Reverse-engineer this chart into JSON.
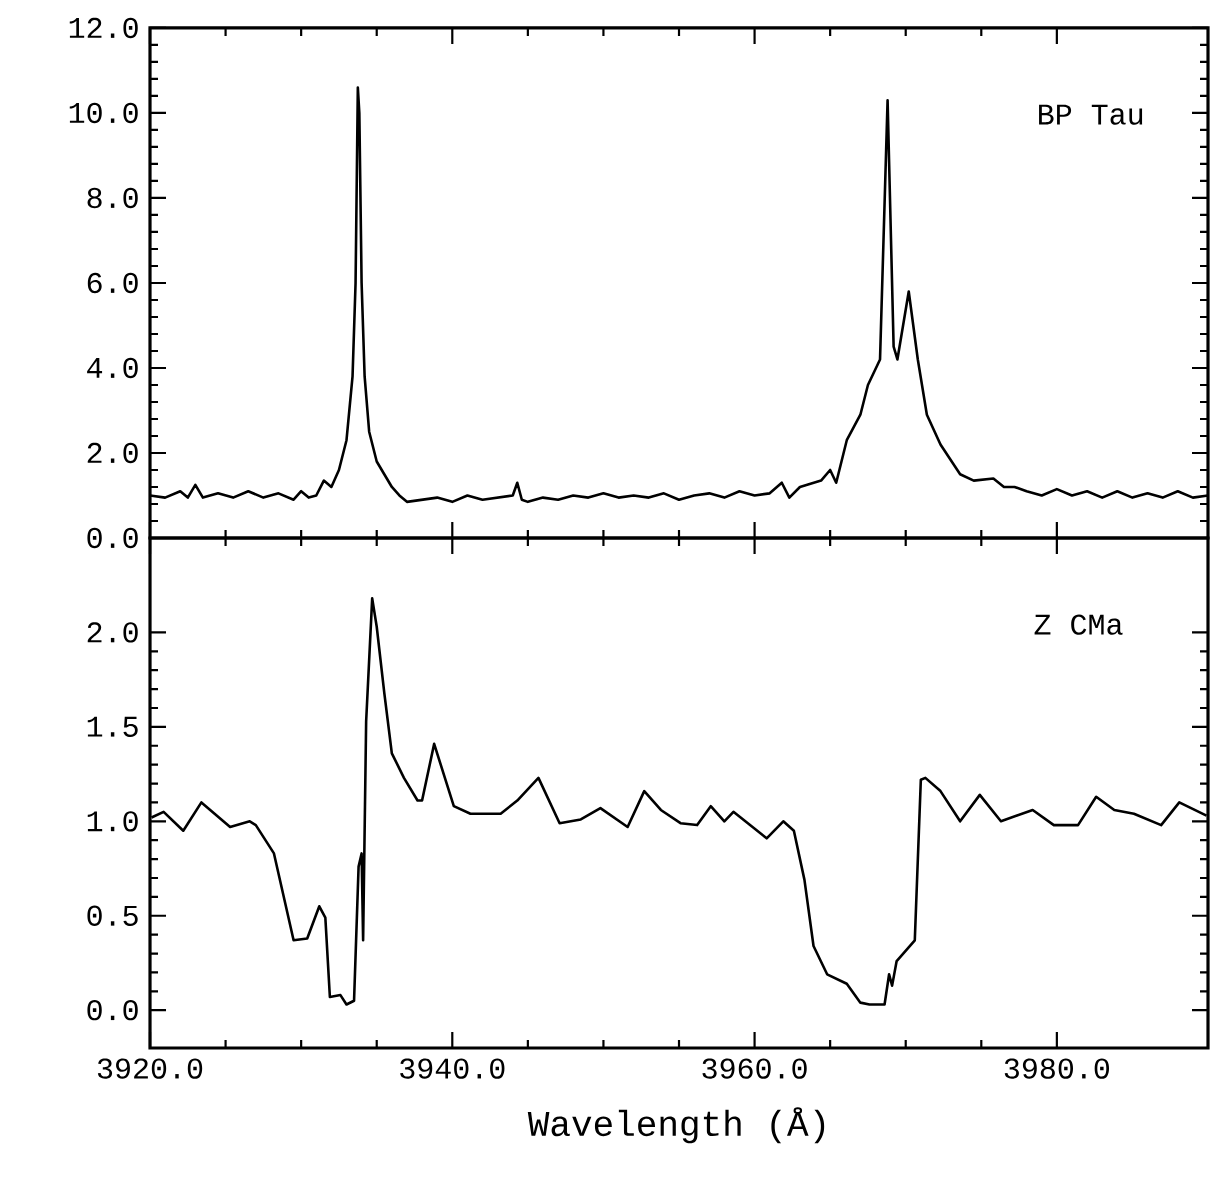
{
  "chart_data": [
    {
      "type": "line",
      "xlim": [
        3920,
        3990
      ],
      "xticks": [
        {
          "value": 3920,
          "label": null
        },
        {
          "value": 3940,
          "label": null
        },
        {
          "value": 3960,
          "label": null
        },
        {
          "value": 3980,
          "label": null
        }
      ],
      "ylim": [
        0,
        12
      ],
      "yticks": [
        {
          "value": 0,
          "label": "0.0"
        },
        {
          "value": 2,
          "label": "2.0"
        },
        {
          "value": 4,
          "label": "4.0"
        },
        {
          "value": 6,
          "label": "6.0"
        },
        {
          "value": 8,
          "label": "8.0"
        },
        {
          "value": 10,
          "label": "10.0"
        },
        {
          "value": 12,
          "label": "12.0"
        }
      ],
      "tick_labels": "y",
      "series": [
        {
          "name": "BP Tau",
          "color": "#000000",
          "x": [
            3920,
            3921,
            3922,
            3922.5,
            3923,
            3923.5,
            3924.5,
            3925.5,
            3926.5,
            3927.5,
            3928.5,
            3929.5,
            3930,
            3930.5,
            3931,
            3931.5,
            3932,
            3932.5,
            3933,
            3933.4,
            3933.6,
            3933.75,
            3933.85,
            3934.0,
            3934.2,
            3934.5,
            3935,
            3935.5,
            3936,
            3936.5,
            3937,
            3938,
            3939,
            3940,
            3941,
            3942,
            3943,
            3944,
            3944.3,
            3944.6,
            3945,
            3946,
            3947,
            3948,
            3949,
            3950,
            3951,
            3952,
            3953,
            3954,
            3955,
            3956,
            3957,
            3958,
            3959,
            3960,
            3961,
            3961.8,
            3962.3,
            3963,
            3964.4,
            3965.0,
            3965.4,
            3966.1,
            3967.0,
            3967.5,
            3968.3,
            3968.8,
            3969.2,
            3969.45,
            3970.2,
            3970.8,
            3971.4,
            3972.3,
            3973.6,
            3974.5,
            3975.8,
            3976.5,
            3977.2,
            3978,
            3979,
            3980,
            3981,
            3982,
            3983,
            3984,
            3985,
            3986,
            3987,
            3988,
            3989,
            3990
          ],
          "values": [
            1.0,
            0.95,
            1.1,
            0.95,
            1.25,
            0.95,
            1.05,
            0.95,
            1.1,
            0.95,
            1.05,
            0.9,
            1.1,
            0.95,
            1.0,
            1.35,
            1.2,
            1.6,
            2.3,
            3.8,
            6.0,
            10.6,
            10.0,
            6.0,
            3.8,
            2.5,
            1.8,
            1.5,
            1.2,
            1.0,
            0.85,
            0.9,
            0.95,
            0.85,
            1.0,
            0.9,
            0.95,
            1.0,
            1.3,
            0.9,
            0.85,
            0.95,
            0.9,
            1.0,
            0.95,
            1.05,
            0.95,
            1.0,
            0.95,
            1.05,
            0.9,
            1.0,
            1.05,
            0.95,
            1.1,
            1.0,
            1.05,
            1.3,
            0.95,
            1.2,
            1.35,
            1.6,
            1.3,
            2.3,
            2.9,
            3.6,
            4.2,
            10.3,
            4.5,
            4.2,
            5.8,
            4.2,
            2.9,
            2.2,
            1.5,
            1.35,
            1.4,
            1.2,
            1.2,
            1.1,
            1.0,
            1.15,
            1.0,
            1.1,
            0.95,
            1.1,
            0.95,
            1.05,
            0.95,
            1.1,
            0.95,
            1.0
          ]
        }
      ]
    },
    {
      "type": "line",
      "xlim": [
        3920,
        3990
      ],
      "xticks": [
        {
          "value": 3920,
          "label": "3920.0"
        },
        {
          "value": 3940,
          "label": "3940.0"
        },
        {
          "value": 3960,
          "label": "3960.0"
        },
        {
          "value": 3980,
          "label": "3980.0"
        }
      ],
      "ylim": [
        -0.2,
        2.5
      ],
      "yticks": [
        {
          "value": 0,
          "label": "0.0"
        },
        {
          "value": 0.5,
          "label": "0.5"
        },
        {
          "value": 1,
          "label": "1.0"
        },
        {
          "value": 1.5,
          "label": "1.5"
        },
        {
          "value": 2,
          "label": "2.0"
        }
      ],
      "xlabel": "Wavelength (Å)",
      "series": [
        {
          "name": "Z CMa",
          "color": "#000000",
          "x": [
            3920.1,
            3920.9,
            3922.2,
            3923.4,
            3925.3,
            3926.6,
            3927.0,
            3928.2,
            3929.5,
            3930.4,
            3931.2,
            3931.6,
            3931.9,
            3932.6,
            3933.0,
            3933.5,
            3933.8,
            3934.0,
            3934.1,
            3934.3,
            3934.7,
            3935.0,
            3935.5,
            3936.0,
            3936.8,
            3937.7,
            3938.0,
            3938.8,
            3940.1,
            3941.2,
            3943.2,
            3944.3,
            3945.7,
            3947.1,
            3948.5,
            3949.8,
            3951.6,
            3952.7,
            3953.8,
            3955.1,
            3956.2,
            3957.1,
            3958.0,
            3958.6,
            3960.8,
            3961.9,
            3962.6,
            3963.3,
            3963.9,
            3964.8,
            3966.1,
            3967.0,
            3967.6,
            3968.6,
            3968.9,
            3969.1,
            3969.4,
            3970.6,
            3971.0,
            3971.3,
            3972.3,
            3973.6,
            3974.9,
            3976.3,
            3978.4,
            3979.8,
            3981.4,
            3982.6,
            3983.8,
            3985.1,
            3986.9,
            3988.1,
            3989.9
          ],
          "values": [
            1.02,
            1.05,
            0.95,
            1.1,
            0.97,
            1.0,
            0.98,
            0.83,
            0.37,
            0.38,
            0.55,
            0.49,
            0.07,
            0.08,
            0.03,
            0.05,
            0.76,
            0.83,
            0.37,
            1.53,
            2.18,
            2.03,
            1.68,
            1.36,
            1.23,
            1.11,
            1.11,
            1.41,
            1.08,
            1.04,
            1.04,
            1.11,
            1.23,
            0.99,
            1.01,
            1.07,
            0.97,
            1.16,
            1.06,
            0.99,
            0.98,
            1.08,
            1.0,
            1.05,
            0.91,
            1.0,
            0.95,
            0.69,
            0.34,
            0.19,
            0.14,
            0.04,
            0.03,
            0.03,
            0.19,
            0.13,
            0.26,
            0.37,
            1.22,
            1.23,
            1.16,
            1.0,
            1.14,
            1.0,
            1.06,
            0.98,
            0.98,
            1.13,
            1.06,
            1.04,
            0.98,
            1.1,
            1.03
          ]
        }
      ]
    }
  ]
}
